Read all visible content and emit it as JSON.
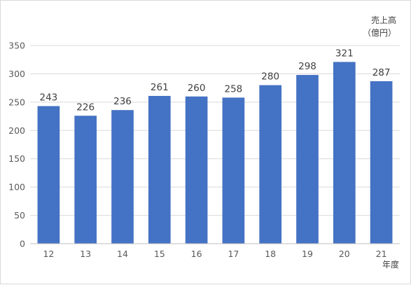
{
  "chart_data": {
    "type": "bar",
    "categories": [
      "12",
      "13",
      "14",
      "15",
      "16",
      "17",
      "18",
      "19",
      "20",
      "21"
    ],
    "values": [
      243,
      226,
      236,
      261,
      260,
      258,
      280,
      298,
      321,
      287
    ],
    "ylim": [
      0,
      350
    ],
    "yticks": [
      0,
      50,
      100,
      150,
      200,
      250,
      300,
      350
    ],
    "ylabel_line1": "売上高",
    "ylabel_line2": "（億円）",
    "xlabel": "年度",
    "bar_color": "#4472c4",
    "grid": true,
    "data_labels": true
  }
}
